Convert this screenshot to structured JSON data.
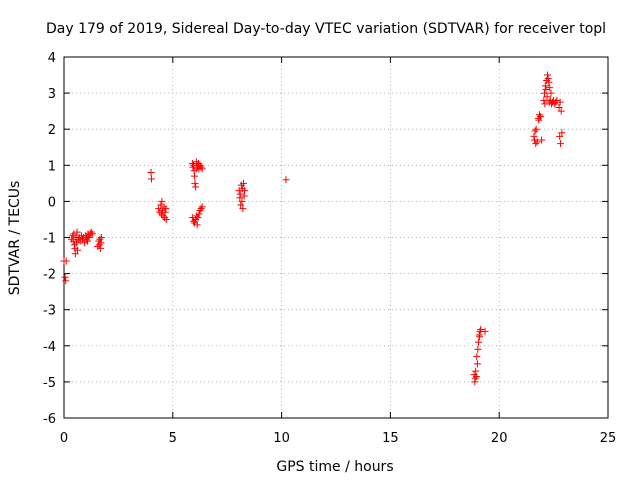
{
  "chart_data": {
    "type": "scatter",
    "title": "Day 179 of 2019, Sidereal Day-to-day VTEC variation (SDTVAR) for receiver topl",
    "xlabel": "GPS time / hours",
    "ylabel": "SDTVAR / TECUs",
    "xlim": [
      0,
      25
    ],
    "ylim": [
      -6,
      4
    ],
    "xticks": [
      0,
      5,
      10,
      15,
      20,
      25
    ],
    "yticks": [
      -6,
      -5,
      -4,
      -3,
      -2,
      -1,
      0,
      1,
      2,
      3,
      4
    ],
    "grid": true,
    "marker": "+",
    "colors": {
      "points": "#ff0000",
      "grid": "#a0a0a0",
      "axes": "#000000"
    },
    "series": [
      {
        "name": "SDTVAR",
        "points": [
          [
            0.0,
            -1.65
          ],
          [
            0.05,
            -2.1
          ],
          [
            0.08,
            -2.2
          ],
          [
            0.1,
            -1.65
          ],
          [
            0.35,
            -1.05
          ],
          [
            0.4,
            -0.95
          ],
          [
            0.42,
            -1.1
          ],
          [
            0.45,
            -0.9
          ],
          [
            0.48,
            -1.2
          ],
          [
            0.5,
            -1.3
          ],
          [
            0.52,
            -1.45
          ],
          [
            0.55,
            -1.0
          ],
          [
            0.58,
            -1.15
          ],
          [
            0.6,
            -0.85
          ],
          [
            0.62,
            -1.35
          ],
          [
            0.65,
            -1.05
          ],
          [
            0.7,
            -1.0
          ],
          [
            0.75,
            -1.1
          ],
          [
            0.8,
            -0.95
          ],
          [
            0.85,
            -1.05
          ],
          [
            0.9,
            -1.0
          ],
          [
            0.95,
            -1.15
          ],
          [
            1.0,
            -0.95
          ],
          [
            1.02,
            -1.05
          ],
          [
            1.05,
            -1.0
          ],
          [
            1.08,
            -1.1
          ],
          [
            1.1,
            -0.9
          ],
          [
            1.12,
            -0.95
          ],
          [
            1.15,
            -1.0
          ],
          [
            1.2,
            -0.9
          ],
          [
            1.25,
            -0.85
          ],
          [
            1.3,
            -0.9
          ],
          [
            1.55,
            -1.25
          ],
          [
            1.6,
            -1.1
          ],
          [
            1.62,
            -1.2
          ],
          [
            1.65,
            -1.05
          ],
          [
            1.68,
            -1.3
          ],
          [
            1.7,
            -1.15
          ],
          [
            1.72,
            -1.0
          ],
          [
            4.0,
            0.8
          ],
          [
            4.02,
            0.62
          ],
          [
            4.35,
            -0.2
          ],
          [
            4.4,
            -0.3
          ],
          [
            4.45,
            -0.1
          ],
          [
            4.48,
            -0.35
          ],
          [
            4.5,
            0.0
          ],
          [
            4.52,
            -0.25
          ],
          [
            4.55,
            -0.4
          ],
          [
            4.6,
            -0.15
          ],
          [
            4.62,
            -0.45
          ],
          [
            4.65,
            -0.3
          ],
          [
            4.68,
            -0.2
          ],
          [
            4.7,
            -0.5
          ],
          [
            5.9,
            1.05
          ],
          [
            5.92,
            0.95
          ],
          [
            5.95,
            1.0
          ],
          [
            5.98,
            0.85
          ],
          [
            6.0,
            0.7
          ],
          [
            6.02,
            0.5
          ],
          [
            6.05,
            0.4
          ],
          [
            6.08,
            1.1
          ],
          [
            6.1,
            0.9
          ],
          [
            6.12,
            1.0
          ],
          [
            6.15,
            0.95
          ],
          [
            6.18,
            1.05
          ],
          [
            6.2,
            0.9
          ],
          [
            6.25,
            1.0
          ],
          [
            6.3,
            0.95
          ],
          [
            6.35,
            0.9
          ],
          [
            5.9,
            -0.45
          ],
          [
            5.95,
            -0.55
          ],
          [
            6.0,
            -0.6
          ],
          [
            6.05,
            -0.5
          ],
          [
            6.1,
            -0.4
          ],
          [
            6.12,
            -0.65
          ],
          [
            6.15,
            -0.45
          ],
          [
            6.2,
            -0.35
          ],
          [
            6.25,
            -0.25
          ],
          [
            6.3,
            -0.2
          ],
          [
            6.35,
            -0.15
          ],
          [
            8.05,
            0.3
          ],
          [
            8.08,
            0.1
          ],
          [
            8.1,
            0.2
          ],
          [
            8.12,
            -0.1
          ],
          [
            8.15,
            0.45
          ],
          [
            8.18,
            0.0
          ],
          [
            8.2,
            0.35
          ],
          [
            8.22,
            -0.2
          ],
          [
            8.25,
            0.5
          ],
          [
            8.28,
            0.15
          ],
          [
            8.3,
            0.3
          ],
          [
            10.2,
            0.6
          ],
          [
            18.85,
            -4.8
          ],
          [
            18.88,
            -5.0
          ],
          [
            18.9,
            -4.9
          ],
          [
            18.92,
            -4.7
          ],
          [
            18.95,
            -4.85
          ],
          [
            18.97,
            -4.3
          ],
          [
            19.0,
            -4.5
          ],
          [
            19.02,
            -4.1
          ],
          [
            19.05,
            -3.9
          ],
          [
            19.08,
            -3.7
          ],
          [
            19.1,
            -3.75
          ],
          [
            19.12,
            -3.6
          ],
          [
            19.15,
            -3.55
          ],
          [
            19.35,
            -3.6
          ],
          [
            21.6,
            1.8
          ],
          [
            21.62,
            1.7
          ],
          [
            21.65,
            1.95
          ],
          [
            21.68,
            1.6
          ],
          [
            21.7,
            2.0
          ],
          [
            21.75,
            1.65
          ],
          [
            21.8,
            2.3
          ],
          [
            21.82,
            2.25
          ],
          [
            21.85,
            2.4
          ],
          [
            21.9,
            2.35
          ],
          [
            21.95,
            1.7
          ],
          [
            22.05,
            2.8
          ],
          [
            22.08,
            3.0
          ],
          [
            22.1,
            2.7
          ],
          [
            22.12,
            3.2
          ],
          [
            22.15,
            3.1
          ],
          [
            22.18,
            3.35
          ],
          [
            22.2,
            2.9
          ],
          [
            22.22,
            3.5
          ],
          [
            22.25,
            3.4
          ],
          [
            22.28,
            3.3
          ],
          [
            22.3,
            2.75
          ],
          [
            22.32,
            3.15
          ],
          [
            22.35,
            2.8
          ],
          [
            22.38,
            3.0
          ],
          [
            22.4,
            2.7
          ],
          [
            22.45,
            2.75
          ],
          [
            22.5,
            2.8
          ],
          [
            22.55,
            2.7
          ],
          [
            22.6,
            2.75
          ],
          [
            22.65,
            2.8
          ],
          [
            22.75,
            2.6
          ],
          [
            22.78,
            1.8
          ],
          [
            22.8,
            2.75
          ],
          [
            22.82,
            1.6
          ],
          [
            22.85,
            2.5
          ],
          [
            22.88,
            1.9
          ]
        ]
      }
    ]
  }
}
